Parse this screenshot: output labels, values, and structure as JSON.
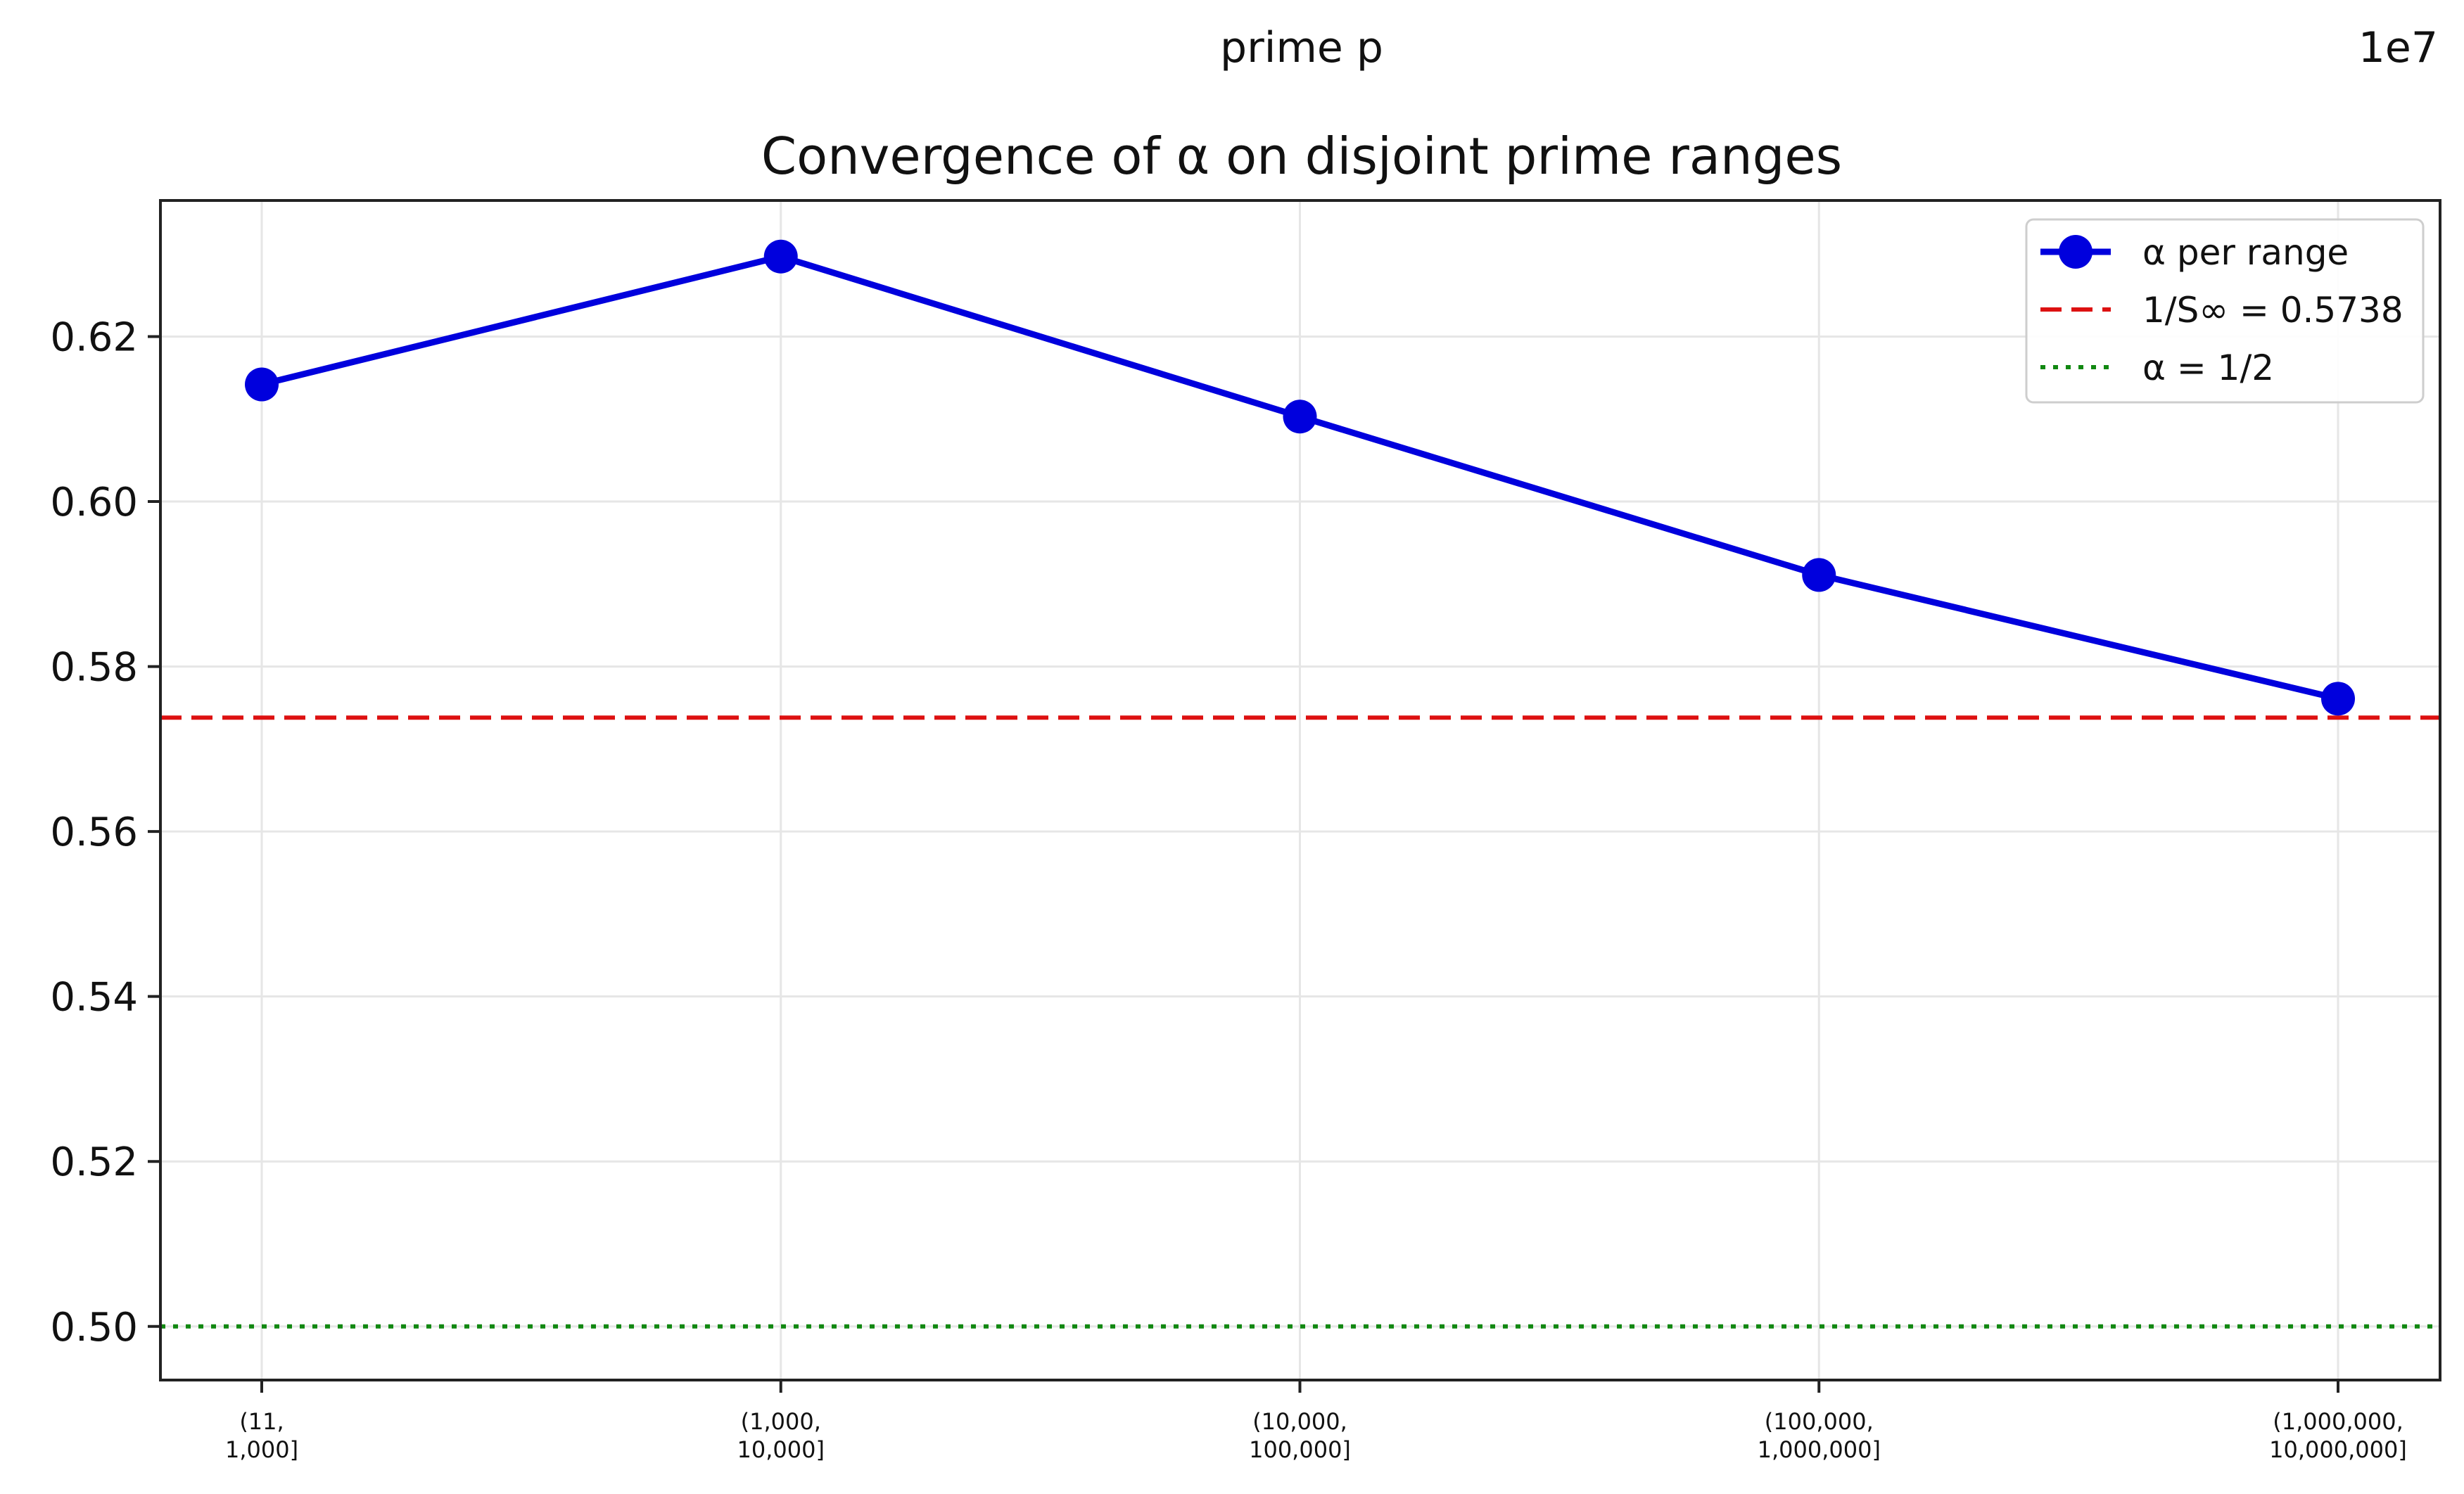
{
  "chart_data": {
    "type": "line",
    "title": "Convergence of α on disjoint prime ranges",
    "xlabel": "prime p",
    "x_offset_label": "1e7",
    "ylabel": "",
    "categories": [
      [
        "(11,",
        "1,000]"
      ],
      [
        "(1,000,",
        "10,000]"
      ],
      [
        "(10,000,",
        "100,000]"
      ],
      [
        "(100,000,",
        "1,000,000]"
      ],
      [
        "(1,000,000,",
        "10,000,000]"
      ]
    ],
    "series": [
      {
        "name": "α per range",
        "values": [
          0.6142,
          0.6297,
          0.6103,
          0.5911,
          0.5761
        ],
        "color": "#0000dd",
        "style": "solid-with-markers"
      }
    ],
    "reference_lines": [
      {
        "name": "1/S∞ = 0.5738",
        "value": 0.5738,
        "color": "#dd1111",
        "style": "dashed"
      },
      {
        "name": "α = 1/2",
        "value": 0.5,
        "color": "#118811",
        "style": "dotted"
      }
    ],
    "ylim": [
      0.4935,
      0.6365
    ],
    "yticks": [
      0.5,
      0.52,
      0.54,
      0.56,
      0.58,
      0.6,
      0.62
    ],
    "ytick_labels": [
      "0.50",
      "0.52",
      "0.54",
      "0.56",
      "0.58",
      "0.60",
      "0.62"
    ],
    "grid": true,
    "legend_position": "top-right"
  }
}
